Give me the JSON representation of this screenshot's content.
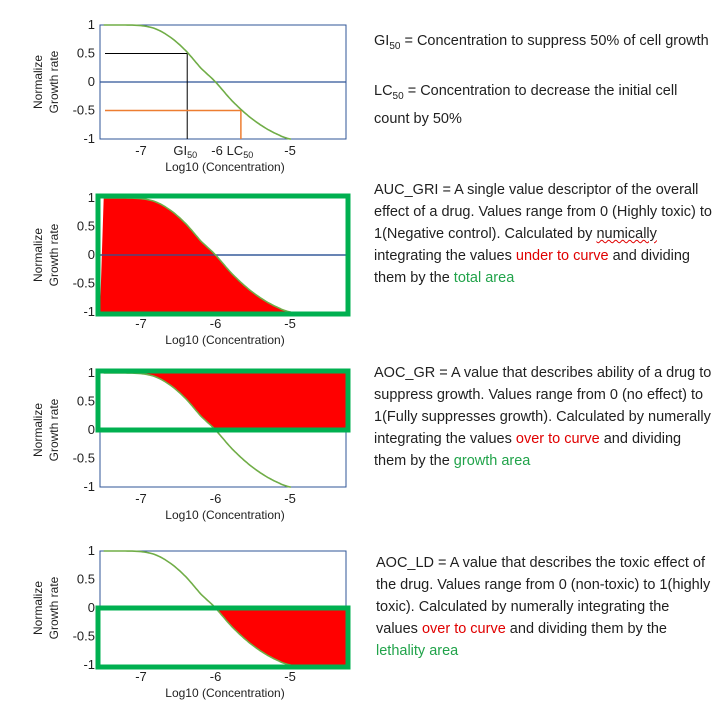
{
  "colors": {
    "curve": "#70ad47",
    "axis": "#2f5597",
    "box": "#00b050",
    "fill": "#ff0000",
    "gi_guide": "#000000",
    "lc_guide": "#ed7d31"
  },
  "axes": {
    "ylabel_line1": "Normalize",
    "ylabel_line2": "Growth rate",
    "xlabel": "Log10 (Concentration)",
    "yticks": [
      "1",
      "0.5",
      "0",
      "-0.5",
      "-1"
    ],
    "xticks": [
      "-7",
      "-6",
      "-5"
    ]
  },
  "chart_data": {
    "type": "line",
    "x": [
      -7.5,
      -7.3,
      -7.0,
      -6.8,
      -6.6,
      -6.4,
      -6.2,
      -6.0,
      -5.8,
      -5.6,
      -5.4,
      -5.2,
      -5.0
    ],
    "y": [
      1.0,
      1.0,
      0.99,
      0.93,
      0.78,
      0.55,
      0.25,
      0.0,
      -0.3,
      -0.55,
      -0.75,
      -0.9,
      -1.0
    ],
    "ylim": [
      -1,
      1
    ],
    "xlim": [
      -7.55,
      -4.25
    ]
  },
  "panel1": {
    "gi_label": "GI",
    "gi_sub": "50",
    "mid_tick": "-6",
    "lc_label": "LC",
    "lc_sub": "50",
    "gi_value": 0.5,
    "lc_value": -0.5
  },
  "desc1": {
    "gi_name": "GI",
    "gi_sub": "50",
    "gi_text": " = Concentration to suppress 50% of cell growth",
    "lc_name": "LC",
    "lc_sub": "50",
    "lc_text": " = Concentration to decrease the initial cell count by 50%"
  },
  "desc2": {
    "t1": "AUC_GRI = A single value descriptor of the overall effect of a drug. Values range from 0 (Highly toxic) to 1(Negative control). Calculated by ",
    "squig": "numically",
    "t2": " integrating the values ",
    "red": "under to curve",
    "t3": " and dividing them by the ",
    "green": "total area"
  },
  "desc3": {
    "t1": "AOC_GR = A value that describes ability of a drug to suppress growth. Values range from 0 (no effect) to 1(Fully suppresses growth). Calculated by numerally integrating the values ",
    "red": "over to curve",
    "t2": " and dividing them by the ",
    "green": "growth area"
  },
  "desc4": {
    "t1": "AOC_LD = A value that describes the toxic effect of the drug. Values range from 0 (non-toxic) to 1(highly toxic). Calculated by numerally integrating the values ",
    "red": "over to curve",
    "t2": " and dividing them by the ",
    "green": "lethality area"
  }
}
